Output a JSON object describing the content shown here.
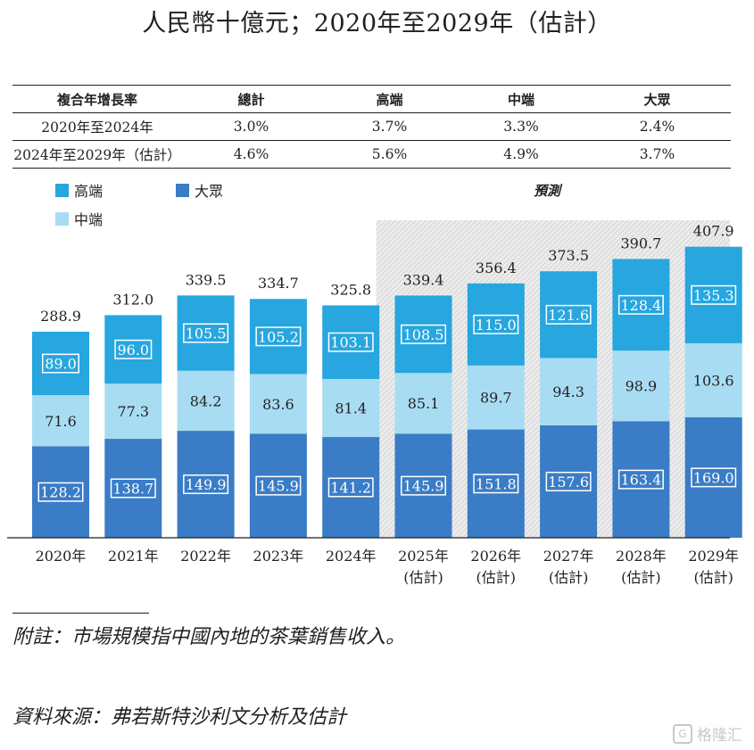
{
  "title": "人民幣十億元；2020年至2029年（估計）",
  "cagr_table": {
    "headers": [
      "複合年增長率",
      "總計",
      "高端",
      "中端",
      "大眾"
    ],
    "rows": [
      [
        "2020年至2024年",
        "3.0%",
        "3.7%",
        "3.3%",
        "2.4%"
      ],
      [
        "2024年至2029年（估計）",
        "4.6%",
        "5.6%",
        "4.9%",
        "3.7%"
      ]
    ]
  },
  "legend": {
    "high": "高端",
    "mass": "大眾",
    "mid": "中端"
  },
  "forecast_label": "預測",
  "colors": {
    "high": "#27a6df",
    "mid": "#a8dcf2",
    "mass": "#3a7cc6",
    "label_bg_high": "#27a6df",
    "label_bg_mass": "#3a7cc6"
  },
  "chart_data": {
    "type": "bar",
    "stacked": true,
    "categories": [
      "2020年",
      "2021年",
      "2022年",
      "2023年",
      "2024年",
      "2025年",
      "2026年",
      "2027年",
      "2028年",
      "2029年"
    ],
    "category_sublabels": [
      "",
      "",
      "",
      "",
      "",
      "(估計)",
      "(估計)",
      "(估計)",
      "(估計)",
      "(估計)"
    ],
    "series": [
      {
        "name": "大眾",
        "key": "mass",
        "values": [
          128.2,
          138.7,
          149.9,
          145.9,
          141.2,
          145.9,
          151.8,
          157.6,
          163.4,
          169.0
        ]
      },
      {
        "name": "中端",
        "key": "mid",
        "values": [
          71.6,
          77.3,
          84.2,
          83.6,
          81.4,
          85.1,
          89.7,
          94.3,
          98.9,
          103.6
        ]
      },
      {
        "name": "高端",
        "key": "high",
        "values": [
          89.0,
          96.0,
          105.5,
          105.2,
          103.1,
          108.5,
          115.0,
          121.6,
          128.4,
          135.3
        ]
      }
    ],
    "totals": [
      288.9,
      312.0,
      339.5,
      334.7,
      325.8,
      339.4,
      356.4,
      373.5,
      390.7,
      407.9
    ],
    "forecast_start_index": 5,
    "ylim": [
      0,
      420
    ]
  },
  "notes": {
    "note": "附註：市場規模指中國內地的茶葉銷售收入。",
    "source": "資料來源：弗若斯特沙利文分析及估計"
  },
  "watermark": "格隆汇"
}
